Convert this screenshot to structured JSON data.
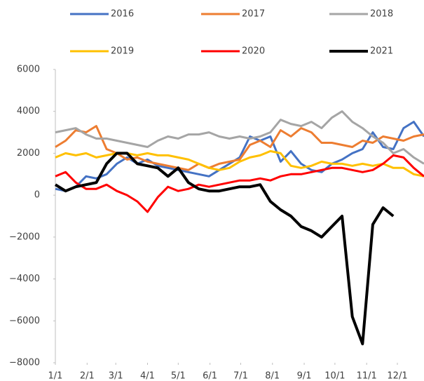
{
  "chart_data": {
    "type": "line",
    "x": [
      0,
      10,
      20,
      30,
      40,
      50,
      60,
      70,
      80,
      90,
      100,
      110,
      120,
      130,
      140,
      150,
      160,
      170,
      180,
      190,
      200,
      210,
      220,
      230,
      240,
      250,
      260,
      270,
      280,
      290,
      300,
      310,
      320,
      330,
      340,
      350,
      360
    ],
    "xlim": [
      0,
      360
    ],
    "xticks": [
      {
        "value": 0,
        "label": "1/1"
      },
      {
        "value": 31,
        "label": "2/1"
      },
      {
        "value": 59,
        "label": "3/1"
      },
      {
        "value": 90,
        "label": "4/1"
      },
      {
        "value": 120,
        "label": "5/1"
      },
      {
        "value": 151,
        "label": "6/1"
      },
      {
        "value": 181,
        "label": "7/1"
      },
      {
        "value": 212,
        "label": "8/1"
      },
      {
        "value": 243,
        "label": "9/1"
      },
      {
        "value": 273,
        "label": "10/1"
      },
      {
        "value": 304,
        "label": "11/1"
      },
      {
        "value": 334,
        "label": "12/1"
      }
    ],
    "ylim": [
      -8000,
      6000
    ],
    "yticks": [
      {
        "value": -8000,
        "label": "−8000"
      },
      {
        "value": -6000,
        "label": "−6000"
      },
      {
        "value": -4000,
        "label": "−4000"
      },
      {
        "value": -2000,
        "label": "−2000"
      },
      0,
      2000,
      4000,
      6000
    ],
    "legend": "top",
    "series": [
      {
        "name": "2016",
        "color": "#4472c4",
        "values": [
          300,
          200,
          400,
          900,
          800,
          1000,
          1500,
          1800,
          1500,
          1700,
          1400,
          1300,
          1200,
          1100,
          1000,
          900,
          1200,
          1500,
          1800,
          2800,
          2600,
          2800,
          1600,
          2100,
          1500,
          1200,
          1100,
          1500,
          1700,
          2000,
          2200,
          3000,
          2300,
          2200,
          3200,
          3500,
          2800
        ]
      },
      {
        "name": "2017",
        "color": "#ed7d31",
        "values": [
          2300,
          2600,
          3100,
          3000,
          3300,
          2200,
          2000,
          1700,
          1800,
          1600,
          1500,
          1400,
          1300,
          1200,
          1500,
          1300,
          1500,
          1600,
          1700,
          2400,
          2600,
          2300,
          3100,
          2800,
          3200,
          3000,
          2500,
          2500,
          2400,
          2300,
          2600,
          2500,
          2800,
          2700,
          2600,
          2800,
          2900
        ]
      },
      {
        "name": "2018",
        "color": "#a5a5a5",
        "values": [
          3000,
          3100,
          3200,
          2900,
          2700,
          2700,
          2600,
          2500,
          2400,
          2300,
          2600,
          2800,
          2700,
          2900,
          2900,
          3000,
          2800,
          2700,
          2800,
          2700,
          2800,
          3000,
          3600,
          3400,
          3300,
          3500,
          3200,
          3700,
          4000,
          3500,
          3200,
          2800,
          2500,
          2000,
          2200,
          1800,
          1500
        ]
      },
      {
        "name": "2019",
        "color": "#ffc000",
        "values": [
          1800,
          2000,
          1900,
          2000,
          1800,
          1900,
          2000,
          2000,
          1900,
          2000,
          1900,
          1900,
          1800,
          1700,
          1500,
          1300,
          1200,
          1300,
          1600,
          1800,
          1900,
          2100,
          2000,
          1400,
          1300,
          1400,
          1600,
          1500,
          1500,
          1400,
          1500,
          1400,
          1500,
          1300,
          1300,
          1000,
          900
        ]
      },
      {
        "name": "2020",
        "color": "#ff0000",
        "values": [
          900,
          1100,
          600,
          300,
          300,
          500,
          200,
          0,
          -300,
          -800,
          -100,
          400,
          200,
          300,
          500,
          400,
          500,
          600,
          700,
          700,
          800,
          700,
          900,
          1000,
          1000,
          1100,
          1200,
          1300,
          1300,
          1200,
          1100,
          1200,
          1500,
          1900,
          1800,
          1300,
          900
        ]
      },
      {
        "name": "2021",
        "color": "#000000",
        "values": [
          500,
          200,
          400,
          500,
          600,
          1500,
          2000,
          2000,
          1500,
          1400,
          1300,
          900,
          1300,
          600,
          300,
          200,
          200,
          300,
          400,
          400,
          500,
          -300,
          -700,
          -1000,
          -1500,
          -1700,
          -2000,
          -1500,
          -1000,
          -5800,
          -7100,
          -1400,
          -600,
          -1000,
          null,
          null,
          null
        ]
      }
    ]
  }
}
